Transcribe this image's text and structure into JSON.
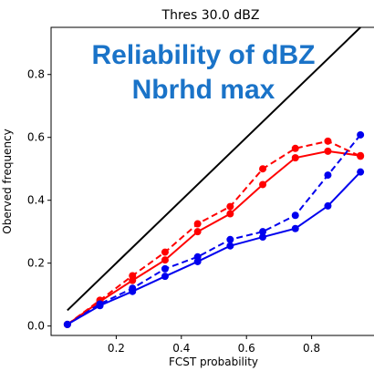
{
  "chart_data": {
    "type": "line",
    "title": "Thres 30.0 dBZ",
    "annotation": [
      "Reliability of dBZ",
      "Nbrhd max"
    ],
    "annotation_color": "#1a73c8",
    "xlabel": "FCST probability",
    "ylabel": "Oberved frequency",
    "xlim": [
      0.0,
      1.0
    ],
    "ylim": [
      -0.03,
      0.95
    ],
    "x_ticks": [
      0.2,
      0.4,
      0.6,
      0.8
    ],
    "x_tick_labels": [
      "0.2",
      "0.4",
      "0.6",
      "0.8"
    ],
    "y_ticks": [
      0.0,
      0.2,
      0.4,
      0.6,
      0.8
    ],
    "y_tick_labels": [
      "0.0",
      "0.2",
      "0.4",
      "0.6",
      "0.8"
    ],
    "grid": false,
    "reference_line": {
      "x": [
        0.05,
        0.95
      ],
      "y": [
        0.05,
        0.95
      ],
      "color": "#000000"
    },
    "series": [
      {
        "color": "#ff0000",
        "dashed": true,
        "x": [
          0.05,
          0.15,
          0.25,
          0.35,
          0.45,
          0.55,
          0.65,
          0.75,
          0.85,
          0.95
        ],
        "y": [
          0.005,
          0.082,
          0.16,
          0.235,
          0.325,
          0.38,
          0.5,
          0.565,
          0.588,
          0.54
        ]
      },
      {
        "color": "#ff0000",
        "dashed": false,
        "x": [
          0.05,
          0.15,
          0.25,
          0.35,
          0.45,
          0.55,
          0.65,
          0.75,
          0.85,
          0.95
        ],
        "y": [
          0.005,
          0.078,
          0.145,
          0.21,
          0.3,
          0.357,
          0.45,
          0.535,
          0.556,
          0.542
        ]
      },
      {
        "color": "#0000ee",
        "dashed": true,
        "x": [
          0.05,
          0.15,
          0.25,
          0.35,
          0.45,
          0.55,
          0.65,
          0.75,
          0.85,
          0.95
        ],
        "y": [
          0.005,
          0.07,
          0.12,
          0.182,
          0.22,
          0.275,
          0.3,
          0.352,
          0.48,
          0.608
        ]
      },
      {
        "color": "#0000ee",
        "dashed": false,
        "x": [
          0.05,
          0.15,
          0.25,
          0.35,
          0.45,
          0.55,
          0.65,
          0.75,
          0.85,
          0.95
        ],
        "y": [
          0.005,
          0.065,
          0.11,
          0.158,
          0.205,
          0.255,
          0.283,
          0.31,
          0.382,
          0.49
        ]
      }
    ]
  }
}
